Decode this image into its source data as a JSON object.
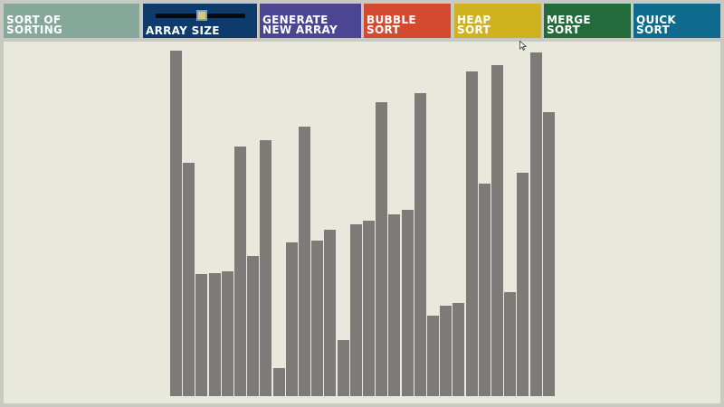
{
  "app": {
    "title_line1": "SORT OF",
    "title_line2": "SORTING"
  },
  "controls": {
    "array_size_label": "ARRAY SIZE",
    "array_size_slider_value": 0.52,
    "generate_line1": "GENERATE",
    "generate_line2": "NEW ARRAY",
    "bubble_line1": "BUBBLE",
    "bubble_line2": "SORT",
    "heap_line1": "HEAP",
    "heap_line2": "SORT",
    "merge_line1": "MERGE",
    "merge_line2": "SORT",
    "quick_line1": "QUICK",
    "quick_line2": "SORT"
  },
  "colors": {
    "title": "#86a89a",
    "array_size": "#0f3b6c",
    "generate": "#4b4594",
    "bubble": "#d44a31",
    "heap": "#cfb21f",
    "merge": "#236b3b",
    "quick": "#0f6b8d",
    "bar": "#7d7b77",
    "canvas": "#e9e8dc"
  },
  "icons": {
    "cursor": "arrow-cursor-icon"
  },
  "array": {
    "values": [
      382,
      258,
      135,
      136,
      138,
      276,
      155,
      283,
      31,
      170,
      298,
      172,
      184,
      62,
      190,
      194,
      325,
      201,
      206,
      335,
      89,
      100,
      103,
      359,
      235,
      366,
      115,
      247,
      380,
      314
    ]
  }
}
